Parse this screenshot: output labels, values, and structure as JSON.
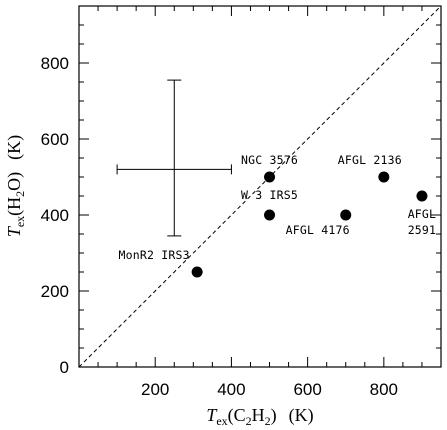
{
  "chart_data": {
    "type": "scatter",
    "xlabel": {
      "main": "T",
      "sub": "ex",
      "paren_pre": "(C",
      "sub2": "2",
      "mid": "H",
      "sub3": "2",
      "paren_post": ")",
      "unit": "(K)"
    },
    "ylabel": {
      "main": "T",
      "sub": "ex",
      "paren_pre": "(H",
      "sub2": "2",
      "mid": "O)",
      "unit": "(K)"
    },
    "xlim": [
      0,
      950
    ],
    "ylim": [
      0,
      950
    ],
    "x_ticks": [
      200,
      400,
      600,
      800
    ],
    "y_ticks": [
      0,
      200,
      400,
      600,
      800
    ],
    "x_tick_labels": [
      "200",
      "400",
      "600",
      "800"
    ],
    "y_tick_labels": [
      "0",
      "200",
      "400",
      "600",
      "800"
    ],
    "reference_line": {
      "style": "dashed",
      "slope": 1,
      "intercept": 0
    },
    "error_bar_example": {
      "x": 250,
      "y": 520,
      "x_err": 150,
      "y_low": 345,
      "y_high": 755
    },
    "points": [
      {
        "label": "MonR2 IRS3",
        "x": 310,
        "y": 250
      },
      {
        "label": "NGC 3576",
        "x": 500,
        "y": 500
      },
      {
        "label": "W 3 IRS5",
        "x": 500,
        "y": 400
      },
      {
        "label": "AFGL 4176",
        "x": 700,
        "y": 400
      },
      {
        "label": "AFGL 2136",
        "x": 800,
        "y": 500
      },
      {
        "label": "AFGL 2591",
        "x": 900,
        "y": 450,
        "label_lines": [
          "AFGL",
          "2591"
        ]
      }
    ]
  }
}
